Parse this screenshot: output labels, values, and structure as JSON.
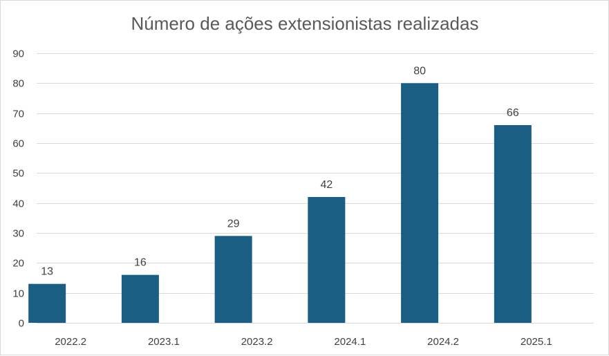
{
  "chart_data": {
    "type": "bar",
    "title": "Número de ações extensionistas realizadas",
    "categories": [
      "2022.2",
      "2023.1",
      "2023.2",
      "2024.1",
      "2024.2",
      "2025.1"
    ],
    "values": [
      13,
      16,
      29,
      42,
      80,
      66
    ],
    "data_labels": [
      "13",
      "16",
      "29",
      "42",
      "80",
      "66"
    ],
    "xlabel": "",
    "ylabel": "",
    "ylim": [
      0,
      90
    ],
    "yticks": [
      0,
      10,
      20,
      30,
      40,
      50,
      60,
      70,
      80,
      90
    ],
    "ytick_labels": [
      "0",
      "10",
      "20",
      "30",
      "40",
      "50",
      "60",
      "70",
      "80",
      "90"
    ],
    "grid": true,
    "legend": "none",
    "bar_color": "#1a5e83"
  }
}
